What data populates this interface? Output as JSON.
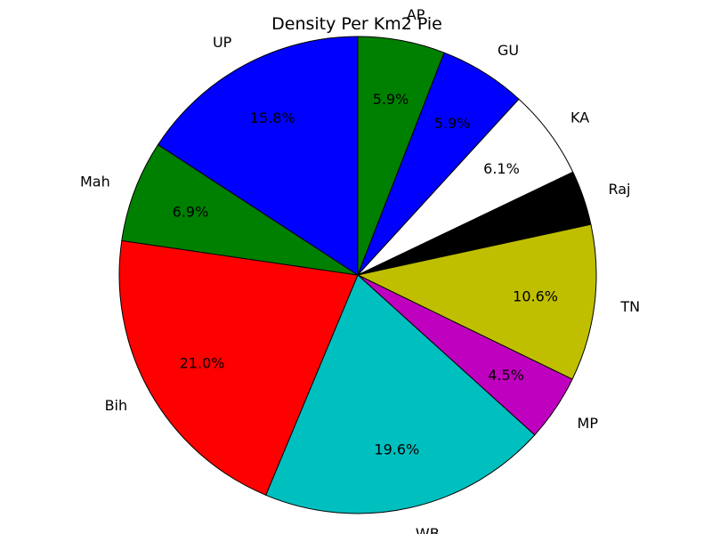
{
  "chart_data": {
    "type": "pie",
    "title": "Density Per Km2 Pie",
    "start_angle_deg": 90,
    "direction": "clockwise",
    "legend": "none",
    "slices": [
      {
        "label": "AP",
        "value": 5.9,
        "pct_label": "5.9%",
        "color": "#008000"
      },
      {
        "label": "GU",
        "value": 5.9,
        "pct_label": "5.9%",
        "color": "#0000ff"
      },
      {
        "label": "KA",
        "value": 6.1,
        "pct_label": "6.1%",
        "color": "#ffffff"
      },
      {
        "label": "Raj",
        "value": 3.7,
        "pct_label": "",
        "color": "#000000"
      },
      {
        "label": "TN",
        "value": 10.6,
        "pct_label": "10.6%",
        "color": "#bfbf00"
      },
      {
        "label": "MP",
        "value": 4.5,
        "pct_label": "4.5%",
        "color": "#bf00bf"
      },
      {
        "label": "WB",
        "value": 19.6,
        "pct_label": "19.6%",
        "color": "#00bfbf"
      },
      {
        "label": "Bih",
        "value": 21.0,
        "pct_label": "21.0%",
        "color": "#ff0000"
      },
      {
        "label": "Mah",
        "value": 6.9,
        "pct_label": "6.9%",
        "color": "#008000"
      },
      {
        "label": "UP",
        "value": 15.8,
        "pct_label": "15.8%",
        "color": "#0000ff"
      }
    ]
  }
}
